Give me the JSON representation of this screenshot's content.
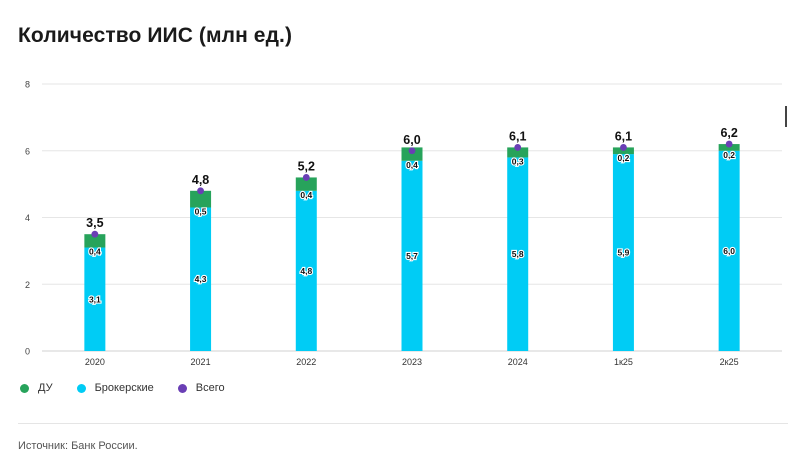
{
  "title": "Количество ИИС (млн ед.)",
  "source": "Источник: Банк России.",
  "colors": {
    "du": "#27a35b",
    "broker": "#00ccf5",
    "total": "#6a3fb5",
    "grid": "#e6e6e6"
  },
  "legend": [
    {
      "key": "du",
      "label": "ДУ"
    },
    {
      "key": "broker",
      "label": "Брокерские"
    },
    {
      "key": "total",
      "label": "Всего"
    }
  ],
  "chart_data": {
    "type": "bar",
    "stacked": true,
    "title": "Количество ИИС (млн ед.)",
    "xlabel": "",
    "ylabel": "",
    "ylim": [
      0,
      8
    ],
    "yticks": [
      0,
      2,
      4,
      6,
      8
    ],
    "grid": true,
    "legend_position": "bottom-left",
    "categories": [
      "2020",
      "2021",
      "2022",
      "2023",
      "2024",
      "1к25",
      "2к25"
    ],
    "series": [
      {
        "name": "Брокерские",
        "key": "broker",
        "values": [
          3.1,
          4.3,
          4.8,
          5.7,
          5.8,
          5.9,
          6.0
        ],
        "labels": [
          "3,1",
          "4,3",
          "4,8",
          "5,7",
          "5,8",
          "5,9",
          "6,0"
        ]
      },
      {
        "name": "ДУ",
        "key": "du",
        "values": [
          0.4,
          0.5,
          0.4,
          0.4,
          0.3,
          0.2,
          0.2
        ],
        "labels": [
          "0,4",
          "0,5",
          "0,4",
          "0,4",
          "0,3",
          "0,2",
          "0,2"
        ]
      }
    ],
    "totals": {
      "name": "Всего",
      "key": "total",
      "values": [
        3.5,
        4.8,
        5.2,
        6.0,
        6.1,
        6.1,
        6.2
      ],
      "labels": [
        "3,5",
        "4,8",
        "5,2",
        "6,0",
        "6,1",
        "6,1",
        "6,2"
      ]
    }
  }
}
